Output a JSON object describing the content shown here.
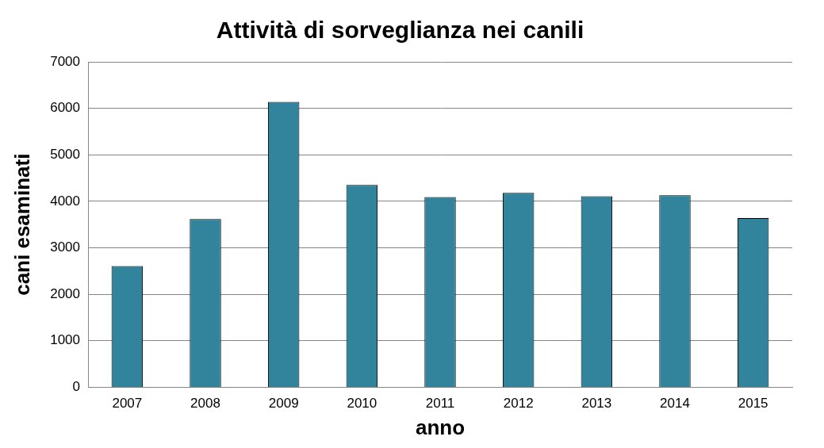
{
  "chart_data": {
    "type": "bar",
    "title": "Attività di sorveglianza nei canili",
    "x_label": "anno",
    "y_label": "cani esaminati",
    "categories": [
      "2007",
      "2008",
      "2009",
      "2010",
      "2011",
      "2012",
      "2013",
      "2014",
      "2015"
    ],
    "values": [
      2610,
      3620,
      6140,
      4350,
      4090,
      4180,
      4110,
      4130,
      3640
    ],
    "color": "#31849b",
    "ylim": [
      0,
      7000
    ],
    "yticks": [
      0,
      1000,
      2000,
      3000,
      4000,
      5000,
      6000,
      7000
    ],
    "grid": true
  }
}
